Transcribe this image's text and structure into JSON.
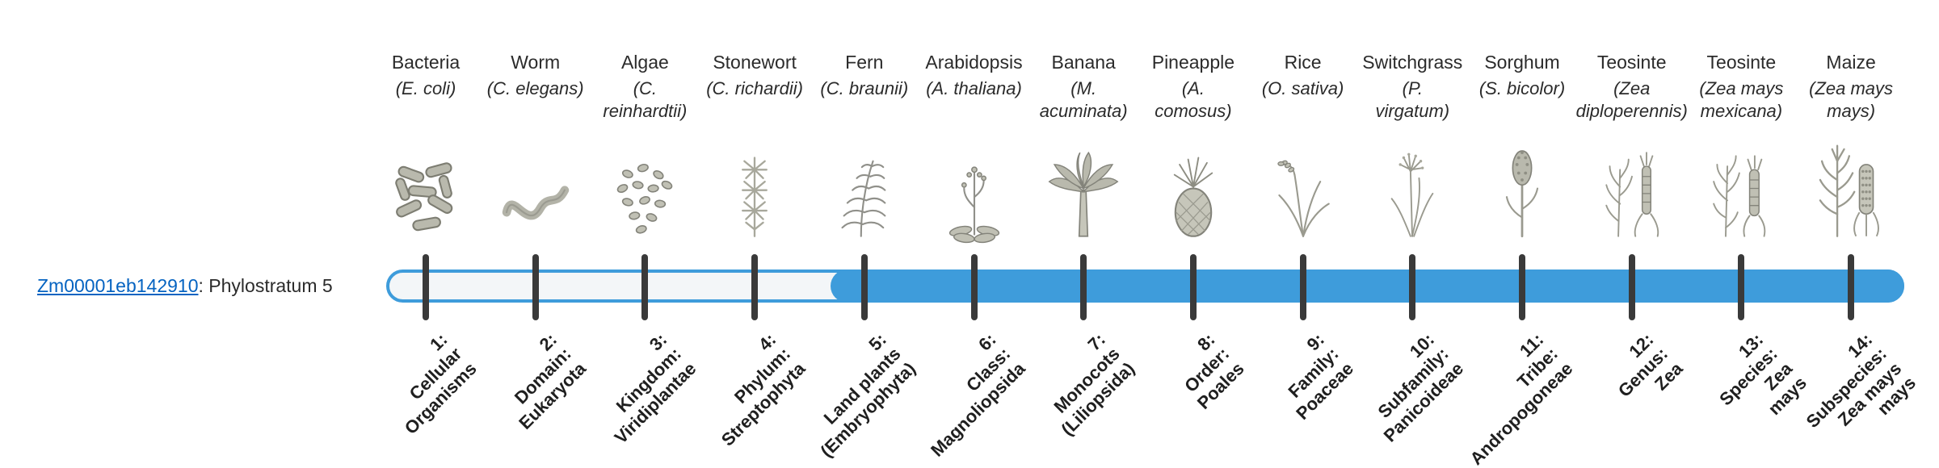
{
  "gene": {
    "id": "Zm00001eb142910",
    "suffix": ": Phylostratum 5"
  },
  "bar": {
    "phylostratum": 5,
    "filled_from_index": 4,
    "filled_from_label": "5: Land plants (Embryophyta)"
  },
  "colors": {
    "bar_fill": "#3E9CDB",
    "bar_track_bg": "#F3F6F8",
    "tick": "#3A3A3A",
    "link": "#0563C1",
    "text": "#2B2B2B"
  },
  "species": [
    {
      "name": "Bacteria",
      "scientific": "(E. coli)",
      "icon": "bacteria-icon",
      "stratum_label": "1:\nCellular\nOrganisms"
    },
    {
      "name": "Worm",
      "scientific": "(C. elegans)",
      "icon": "worm-icon",
      "stratum_label": "2:\nDomain:\nEukaryota"
    },
    {
      "name": "Algae",
      "scientific": "(C.\nreinhardtii)",
      "icon": "algae-icon",
      "stratum_label": "3:\nKingdom:\nViridiplantae"
    },
    {
      "name": "Stonewort",
      "scientific": "(C. richardii)",
      "icon": "stonewort-icon",
      "stratum_label": "4:\nPhylum:\nStreptophyta"
    },
    {
      "name": "Fern",
      "scientific": "(C. braunii)",
      "icon": "fern-icon",
      "stratum_label": "5:\nLand plants\n(Embryophyta)"
    },
    {
      "name": "Arabidopsis",
      "scientific": "(A. thaliana)",
      "icon": "arabidopsis-icon",
      "stratum_label": "6:\nClass:\nMagnoliopsida"
    },
    {
      "name": "Banana",
      "scientific": "(M.\nacuminata)",
      "icon": "banana-icon",
      "stratum_label": "7:\nMonocots\n(Liliopsida)"
    },
    {
      "name": "Pineapple",
      "scientific": "(A.\ncomosus)",
      "icon": "pineapple-icon",
      "stratum_label": "8:\nOrder:\nPoales"
    },
    {
      "name": "Rice",
      "scientific": "(O. sativa)",
      "icon": "rice-icon",
      "stratum_label": "9:\nFamily:\nPoaceae"
    },
    {
      "name": "Switchgrass",
      "scientific": "(P.\nvirgatum)",
      "icon": "switchgrass-icon",
      "stratum_label": "10:\nSubfamily:\nPanicoideae"
    },
    {
      "name": "Sorghum",
      "scientific": "(S. bicolor)",
      "icon": "sorghum-icon",
      "stratum_label": "11:\nTribe:\nAndropogoneae"
    },
    {
      "name": "Teosinte",
      "scientific": "(Zea\ndiploperennis)",
      "icon": "teosinte-diplo-icon",
      "stratum_label": "12:\nGenus:\nZea"
    },
    {
      "name": "Teosinte",
      "scientific": "(Zea mays\nmexicana)",
      "icon": "teosinte-mex-icon",
      "stratum_label": "13:\nSpecies:\nZea\nmays"
    },
    {
      "name": "Maize",
      "scientific": "(Zea mays\nmays)",
      "icon": "maize-icon",
      "stratum_label": "14:\nSubspecies:\nZea mays\nmays"
    }
  ]
}
